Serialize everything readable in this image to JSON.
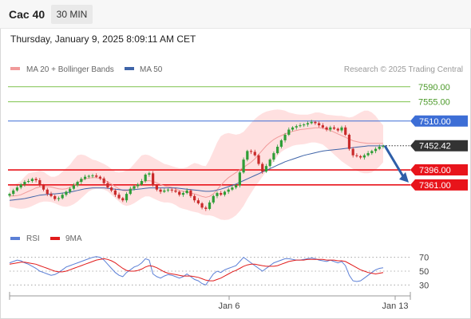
{
  "header": {
    "symbol": "Cac 40",
    "interval": "30 MIN"
  },
  "datetime": "Thursday, January 9, 2025 8:09:11 AM CET",
  "legend": {
    "bb": "MA 20 + Bollinger Bands",
    "ma50": "MA 50",
    "credit": "Research © 2025 Trading Central",
    "rsi": "RSI",
    "rsi_ma": "9MA"
  },
  "colors": {
    "resistance": "#7dc24b",
    "pivot": "#3d6ed6",
    "support": "#e8141b",
    "last": "#333333",
    "bb_fill": "#ffd6d6",
    "ma20": "#f19a9a",
    "ma50": "#3f64a8",
    "up": "#2e9e36",
    "down": "#c92a2a",
    "rsi": "#5b7fd6",
    "rsi_ma": "#e11b1b",
    "arrow": "#2e5ea8"
  },
  "chart_data": [
    {
      "type": "line",
      "subtype": "candlestick",
      "xlabel": "",
      "ylabel": "",
      "ylim": [
        7290,
        7610
      ],
      "x_ticks": [
        "Jan 6",
        "Jan 13"
      ],
      "levels": [
        {
          "value": 7590.0,
          "label": "7590.00",
          "kind": "resistance"
        },
        {
          "value": 7555.0,
          "label": "7555.00",
          "kind": "resistance"
        },
        {
          "value": 7510.0,
          "label": "7510.00",
          "kind": "pivot"
        },
        {
          "value": 7396.0,
          "label": "7396.00",
          "kind": "support"
        },
        {
          "value": 7361.0,
          "label": "7361.00",
          "kind": "support"
        }
      ],
      "last_price": {
        "value": 7452.42,
        "label": "7452.42"
      },
      "closes": [
        7340,
        7348,
        7355,
        7362,
        7368,
        7370,
        7375,
        7372,
        7360,
        7350,
        7340,
        7335,
        7328,
        7330,
        7338,
        7345,
        7352,
        7360,
        7368,
        7375,
        7380,
        7382,
        7383,
        7380,
        7376,
        7365,
        7355,
        7348,
        7338,
        7330,
        7325,
        7340,
        7352,
        7358,
        7362,
        7370,
        7385,
        7388,
        7360,
        7350,
        7345,
        7348,
        7350,
        7348,
        7345,
        7338,
        7342,
        7348,
        7335,
        7325,
        7318,
        7308,
        7305,
        7320,
        7335,
        7342,
        7338,
        7345,
        7350,
        7355,
        7360,
        7390,
        7420,
        7440,
        7438,
        7430,
        7410,
        7392,
        7405,
        7420,
        7435,
        7450,
        7465,
        7478,
        7490,
        7495,
        7498,
        7500,
        7502,
        7505,
        7508,
        7505,
        7500,
        7495,
        7490,
        7495,
        7492,
        7488,
        7495,
        7478,
        7445,
        7430,
        7428,
        7425,
        7430,
        7435,
        7440,
        7445,
        7450,
        7452
      ],
      "bb_upper": [
        7360,
        7362,
        7365,
        7370,
        7380,
        7388,
        7390,
        7392,
        7394,
        7392,
        7385,
        7380,
        7380,
        7384,
        7392,
        7400,
        7408,
        7420,
        7430,
        7432,
        7430,
        7425,
        7420,
        7418,
        7414,
        7410,
        7405,
        7398,
        7392,
        7390,
        7392,
        7395,
        7400,
        7410,
        7420,
        7430,
        7432,
        7430,
        7425,
        7420,
        7415,
        7410,
        7408,
        7405,
        7402,
        7400,
        7400,
        7402,
        7408,
        7412,
        7410,
        7406,
        7405,
        7420,
        7440,
        7460,
        7475,
        7480,
        7482,
        7480,
        7478,
        7480,
        7485,
        7495,
        7505,
        7515,
        7522,
        7528,
        7532,
        7534,
        7536,
        7537,
        7536,
        7534,
        7530,
        7528,
        7526,
        7525,
        7525,
        7525,
        7527,
        7530,
        7530,
        7528,
        7525,
        7524,
        7523,
        7522,
        7522,
        7520,
        7518,
        7520,
        7525,
        7530,
        7534,
        7534,
        7530,
        7522,
        7510,
        7500
      ],
      "bb_lower": [
        7310,
        7308,
        7306,
        7305,
        7306,
        7308,
        7312,
        7316,
        7320,
        7322,
        7322,
        7321,
        7318,
        7314,
        7311,
        7310,
        7312,
        7316,
        7322,
        7330,
        7338,
        7346,
        7350,
        7352,
        7352,
        7350,
        7346,
        7338,
        7330,
        7322,
        7315,
        7312,
        7314,
        7318,
        7324,
        7330,
        7334,
        7334,
        7330,
        7326,
        7322,
        7320,
        7320,
        7318,
        7314,
        7308,
        7305,
        7303,
        7300,
        7298,
        7296,
        7292,
        7290,
        7290,
        7288,
        7284,
        7280,
        7279,
        7280,
        7284,
        7290,
        7300,
        7312,
        7328,
        7342,
        7356,
        7368,
        7380,
        7392,
        7404,
        7416,
        7428,
        7438,
        7444,
        7448,
        7452,
        7454,
        7455,
        7456,
        7458,
        7460,
        7460,
        7458,
        7455,
        7448,
        7440,
        7432,
        7424,
        7416,
        7410,
        7404,
        7398,
        7394,
        7390,
        7388,
        7388,
        7390,
        7396,
        7404,
        7414
      ],
      "ma20": [
        7335,
        7335,
        7336,
        7338,
        7342,
        7346,
        7350,
        7354,
        7356,
        7357,
        7357,
        7356,
        7354,
        7352,
        7351,
        7352,
        7355,
        7360,
        7366,
        7371,
        7375,
        7377,
        7378,
        7378,
        7376,
        7373,
        7368,
        7363,
        7357,
        7352,
        7348,
        7347,
        7350,
        7355,
        7360,
        7366,
        7370,
        7371,
        7369,
        7366,
        7362,
        7359,
        7357,
        7355,
        7352,
        7348,
        7346,
        7344,
        7342,
        7340,
        7337,
        7334,
        7332,
        7334,
        7340,
        7350,
        7360,
        7370,
        7378,
        7384,
        7390,
        7396,
        7402,
        7408,
        7414,
        7422,
        7432,
        7442,
        7452,
        7460,
        7467,
        7472,
        7476,
        7480,
        7483,
        7486,
        7488,
        7490,
        7491,
        7492,
        7493,
        7494,
        7494,
        7493,
        7491,
        7488,
        7484,
        7480,
        7476,
        7472,
        7468,
        7464,
        7462,
        7460,
        7459,
        7458,
        7458,
        7458,
        7458,
        7458
      ],
      "ma50": [
        7325,
        7326,
        7327,
        7328,
        7329,
        7331,
        7333,
        7335,
        7337,
        7338,
        7339,
        7340,
        7340,
        7341,
        7342,
        7343,
        7344,
        7346,
        7348,
        7350,
        7352,
        7353,
        7354,
        7354,
        7354,
        7354,
        7353,
        7352,
        7351,
        7350,
        7349,
        7349,
        7349,
        7350,
        7351,
        7352,
        7353,
        7354,
        7354,
        7354,
        7354,
        7354,
        7354,
        7354,
        7354,
        7353,
        7352,
        7351,
        7350,
        7349,
        7348,
        7347,
        7346,
        7346,
        7347,
        7349,
        7351,
        7354,
        7357,
        7360,
        7363,
        7367,
        7371,
        7375,
        7379,
        7383,
        7387,
        7391,
        7395,
        7399,
        7403,
        7407,
        7411,
        7415,
        7418,
        7421,
        7424,
        7427,
        7430,
        7432,
        7434,
        7436,
        7438,
        7440,
        7441,
        7442,
        7443,
        7444,
        7445,
        7446,
        7447,
        7448,
        7449,
        7450,
        7451,
        7452,
        7452,
        7452,
        7452,
        7452
      ],
      "forecast_target": 7361
    },
    {
      "type": "line",
      "series": [
        {
          "name": "RSI"
        },
        {
          "name": "9MA"
        }
      ],
      "ylim": [
        20,
        80
      ],
      "y_ticks": [
        70,
        50,
        30
      ],
      "rsi": [
        62,
        64,
        66,
        65,
        62,
        60,
        57,
        54,
        50,
        48,
        46,
        44,
        45,
        48,
        52,
        56,
        58,
        60,
        62,
        64,
        66,
        68,
        70,
        71,
        70,
        66,
        60,
        54,
        48,
        44,
        42,
        48,
        52,
        56,
        58,
        62,
        68,
        66,
        46,
        42,
        40,
        43,
        45,
        44,
        42,
        40,
        42,
        46,
        42,
        38,
        36,
        32,
        30,
        38,
        46,
        50,
        48,
        52,
        54,
        56,
        58,
        64,
        70,
        66,
        62,
        58,
        54,
        50,
        54,
        58,
        62,
        64,
        66,
        68,
        68,
        67,
        66,
        66,
        67,
        68,
        69,
        68,
        66,
        65,
        64,
        66,
        64,
        62,
        64,
        58,
        44,
        36,
        35,
        36,
        40,
        44,
        48,
        52,
        54,
        55
      ],
      "rsi_ma": [
        60,
        61,
        62,
        63,
        63,
        62,
        61,
        60,
        58,
        56,
        54,
        52,
        50,
        49,
        49,
        50,
        52,
        54,
        56,
        58,
        60,
        62,
        64,
        66,
        67,
        68,
        67,
        65,
        62,
        58,
        54,
        51,
        50,
        50,
        51,
        53,
        56,
        58,
        57,
        55,
        52,
        49,
        47,
        46,
        45,
        44,
        43,
        43,
        43,
        42,
        41,
        39,
        37,
        36,
        36,
        38,
        40,
        43,
        46,
        49,
        51,
        54,
        57,
        59,
        60,
        60,
        59,
        58,
        57,
        57,
        57,
        58,
        60,
        62,
        64,
        65,
        66,
        66,
        66,
        67,
        67,
        67,
        67,
        67,
        66,
        66,
        66,
        65,
        65,
        64,
        61,
        58,
        55,
        52,
        50,
        48,
        47,
        46,
        47,
        48
      ]
    }
  ]
}
